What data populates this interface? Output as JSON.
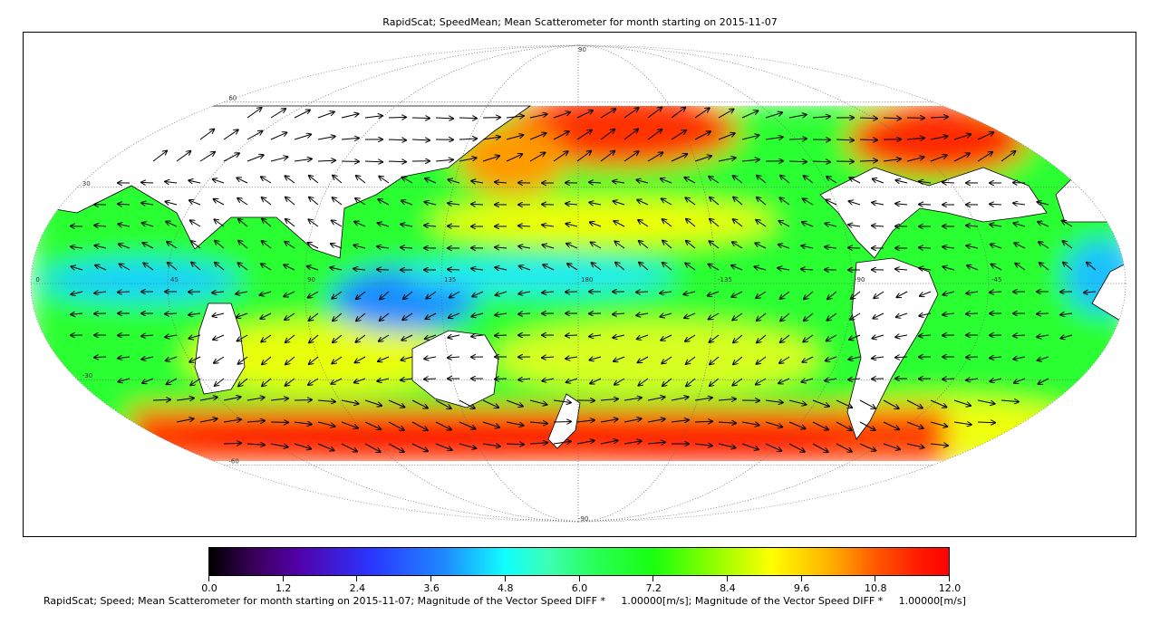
{
  "title": "RapidScat; SpeedMean; Mean Scatterometer for month starting on 2015-11-07",
  "map": {
    "projection": "mollweide",
    "central_longitude": 180,
    "graticule": {
      "latitudes": [
        "90",
        "60",
        "30",
        "0",
        "-30",
        "-60",
        "-90"
      ],
      "longitudes": [
        "45",
        "90",
        "135",
        "180",
        "-135",
        "-90",
        "-45"
      ]
    },
    "colors": {
      "low": "#1e8cff",
      "mid": "#2cff30",
      "high": "#ff1a00",
      "land": "#ffffff",
      "arrow": "#000000"
    }
  },
  "colorbar": {
    "min": 0.0,
    "max": 12.0,
    "ticks": [
      "0.0",
      "1.2",
      "2.4",
      "3.6",
      "4.8",
      "6.0",
      "7.2",
      "8.4",
      "9.6",
      "10.8",
      "12.0"
    ]
  },
  "caption": "RapidScat; Speed; Mean Scatterometer for month starting on 2015-11-07; Magnitude of the Vector Speed DIFF *     1.00000[m/s]; Magnitude of the Vector Speed DIFF *     1.00000[m/s]"
}
